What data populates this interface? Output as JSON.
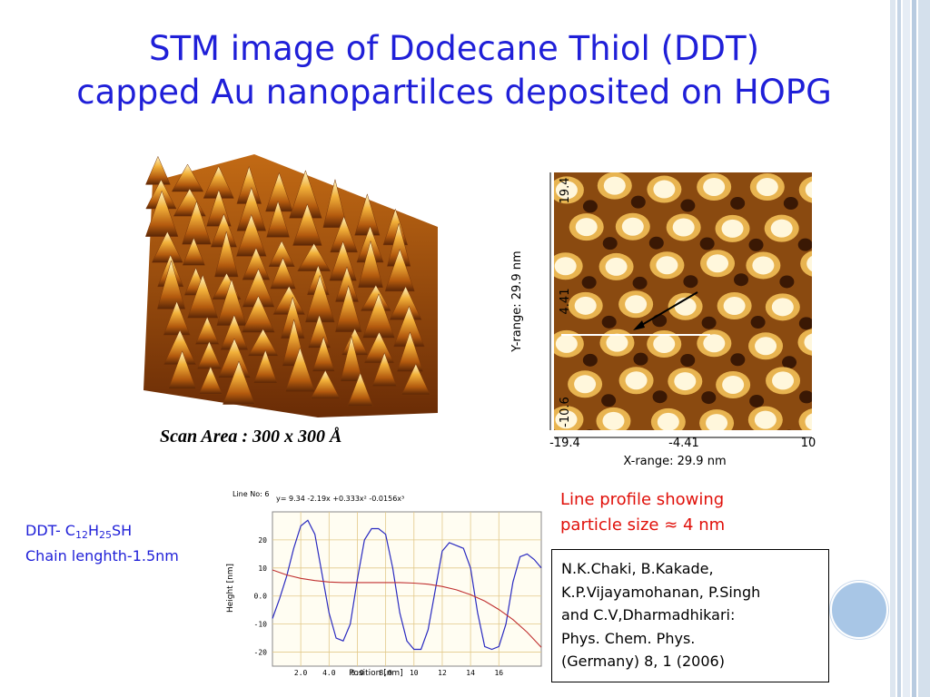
{
  "slide": {
    "title_line1": "STM image of Dodecane Thiol (DDT)",
    "title_line2": "capped Au nanopartilces deposited on HOPG",
    "caption": "Scan Area : 300 x 300 Å",
    "ddt_prefix": "DDT- C",
    "ddt_sub1": "12",
    "ddt_mid": "H",
    "ddt_sub2": "25",
    "ddt_suffix": "SH",
    "chain_length": "Chain lenghth-1.5nm",
    "profile_line1": "Line profile showing",
    "profile_line2": "particle size  ≈  4 nm",
    "reference_lines": [
      "N.K.Chaki, B.Kakade,",
      "K.P.Vijayamohanan, P.Singh",
      "and C.V,Dharmadhikari:",
      "Phys. Chem. Phys.",
      "(Germany) 8, 1 (2006)"
    ]
  },
  "stm_2d": {
    "yrange_label": "Y-range:  29.9 nm",
    "xrange_label": "X-range:  29.9 nm",
    "y_ticks": [
      "19.4",
      "4.41",
      "-10.6"
    ],
    "x_ticks": [
      "-19.4",
      "-4.41",
      "10"
    ]
  },
  "chart_data": {
    "type": "line",
    "title": "",
    "header_text": "Line No: 6",
    "equation": "y= 9.34 -2.19x +0.333x² -0.0156x³",
    "xlabel": "Position [nm]",
    "ylabel": "Height [nm]",
    "xlim": [
      0,
      19
    ],
    "ylim": [
      -25,
      30
    ],
    "x_ticks": [
      "2.0",
      "4.0",
      "6.0",
      "8.0",
      "10",
      "12",
      "14",
      "16"
    ],
    "y_ticks": [
      "20",
      "10",
      "0.0",
      "-10",
      "-20"
    ],
    "grid": true,
    "series": [
      {
        "color": "#2a2ac0",
        "x": [
          0,
          0.5,
          1.0,
          1.5,
          2.0,
          2.5,
          3.0,
          3.5,
          4.0,
          4.5,
          5.0,
          5.5,
          6.0,
          6.5,
          7.0,
          7.5,
          8.0,
          8.5,
          9.0,
          9.5,
          10.0,
          10.5,
          11.0,
          11.5,
          12.0,
          12.5,
          13.0,
          13.5,
          14.0,
          14.5,
          15.0,
          15.5,
          16.0,
          16.5,
          17.0,
          17.5,
          18.0,
          18.5,
          19.0
        ],
        "y": [
          -8,
          -1,
          7,
          17,
          25,
          27,
          22,
          8,
          -6,
          -15,
          -16,
          -10,
          6,
          20,
          24,
          24,
          22,
          10,
          -6,
          -16,
          -19,
          -19,
          -12,
          2,
          16,
          19,
          18,
          17,
          10,
          -6,
          -18,
          -19,
          -18,
          -10,
          5,
          14,
          15,
          13,
          10
        ]
      },
      {
        "color": "#c03030",
        "x": [
          0,
          1,
          2,
          3,
          4,
          5,
          6,
          7,
          8,
          9,
          10,
          11,
          12,
          13,
          14,
          15,
          16,
          17,
          18,
          19
        ],
        "y": [
          9.3,
          7.5,
          6.3,
          5.5,
          5.0,
          4.8,
          4.8,
          4.8,
          4.8,
          4.8,
          4.6,
          4.2,
          3.4,
          2.2,
          0.5,
          -1.8,
          -4.8,
          -8.4,
          -12.9,
          -18.3
        ]
      }
    ]
  }
}
